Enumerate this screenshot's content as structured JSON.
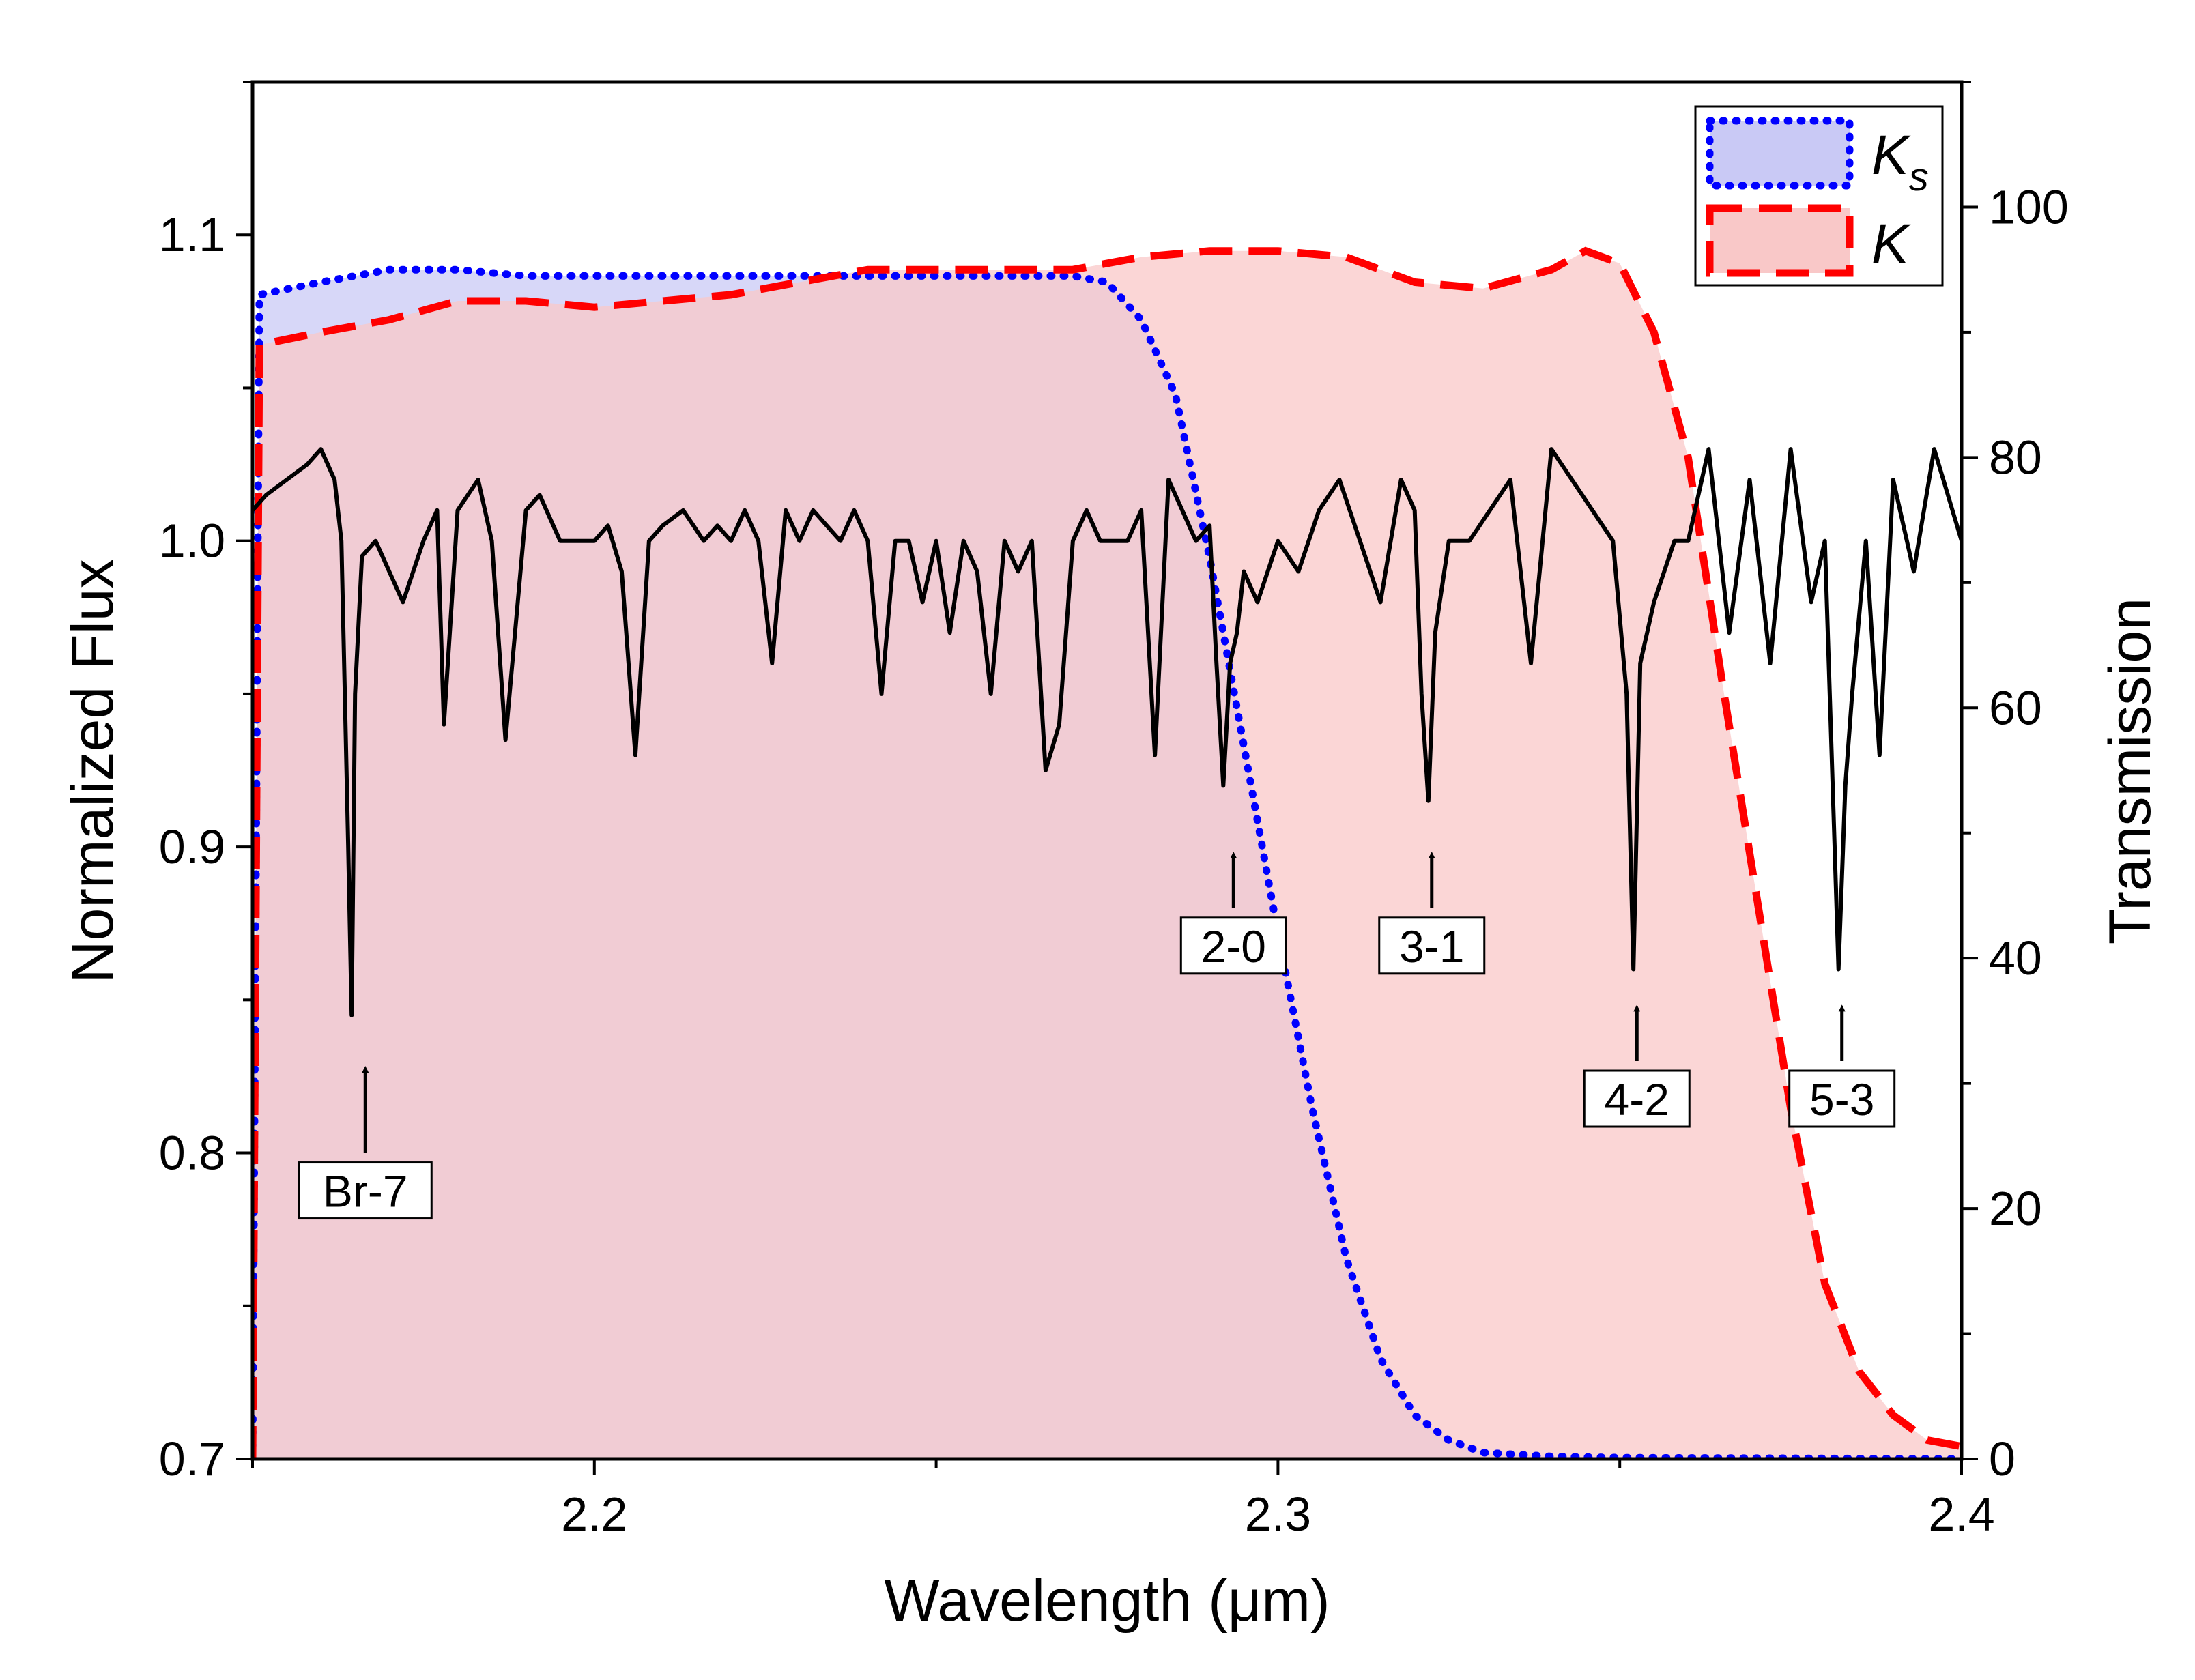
{
  "chart_data": {
    "type": "line",
    "xlabel": "Wavelength (μm)",
    "ylabel_left": "Normalized Flux",
    "ylabel_right": "Transmission",
    "xlim": [
      2.15,
      2.4
    ],
    "ylim_left": [
      0.7,
      1.15
    ],
    "ylim_right": [
      0,
      110
    ],
    "x_ticks": [
      2.2,
      2.3,
      2.4
    ],
    "x_tick_labels": [
      "2.2",
      "2.3",
      "2.4"
    ],
    "y_left_ticks": [
      0.7,
      0.8,
      0.9,
      1.0,
      1.1
    ],
    "y_left_tick_labels": [
      "0.7",
      "0.8",
      "0.9",
      "1.0",
      "1.1"
    ],
    "y_right_ticks": [
      0,
      20,
      40,
      60,
      80,
      100
    ],
    "y_right_tick_labels": [
      "0",
      "20",
      "40",
      "60",
      "80",
      "100"
    ],
    "grid": false,
    "legend_position": "top-right",
    "legend": [
      {
        "label": "K",
        "subscript": "s",
        "style": "dotted",
        "color": "#0000ff",
        "fill": "#c9c9f5"
      },
      {
        "label": "K",
        "subscript": "",
        "style": "dashed",
        "color": "#ff0000",
        "fill": "#f9c8c8"
      }
    ],
    "filters": [
      {
        "name": "Ks",
        "axis": "right",
        "color": "#0000ff",
        "fill": "#c9c9f5",
        "style": "dotted",
        "x": [
          2.15,
          2.151,
          2.16,
          2.17,
          2.18,
          2.19,
          2.2,
          2.21,
          2.22,
          2.23,
          2.24,
          2.25,
          2.26,
          2.27,
          2.275,
          2.28,
          2.285,
          2.29,
          2.295,
          2.3,
          2.305,
          2.31,
          2.315,
          2.32,
          2.325,
          2.33,
          2.34,
          2.35,
          2.4
        ],
        "y": [
          0,
          93,
          94,
          95,
          95,
          94.5,
          94.5,
          94.5,
          94.5,
          94.5,
          94.5,
          94.5,
          94.5,
          94.5,
          94,
          91,
          85,
          72,
          57,
          42,
          28,
          16,
          8,
          3.5,
          1.5,
          0.5,
          0.2,
          0.1,
          0
        ]
      },
      {
        "name": "K",
        "axis": "right",
        "color": "#ff0000",
        "fill": "#f9c8c8",
        "style": "dashed",
        "x": [
          2.15,
          2.151,
          2.16,
          2.17,
          2.18,
          2.19,
          2.2,
          2.21,
          2.22,
          2.23,
          2.24,
          2.25,
          2.26,
          2.27,
          2.28,
          2.29,
          2.3,
          2.31,
          2.32,
          2.33,
          2.34,
          2.345,
          2.35,
          2.355,
          2.36,
          2.365,
          2.37,
          2.375,
          2.38,
          2.385,
          2.39,
          2.395,
          2.4
        ],
        "y": [
          0,
          89,
          90,
          91,
          92.5,
          92.5,
          92,
          92.5,
          93,
          94,
          95,
          95,
          95,
          95,
          96,
          96.5,
          96.5,
          96,
          94,
          93.5,
          95,
          96.5,
          95.5,
          90,
          80,
          62,
          45,
          28,
          14,
          7,
          3.5,
          1.5,
          1
        ]
      }
    ],
    "series": [
      {
        "name": "",
        "axis": "left",
        "color": "#000000",
        "style": "solid",
        "x": [
          2.15,
          2.152,
          2.155,
          2.158,
          2.16,
          2.162,
          2.163,
          2.164,
          2.1645,
          2.165,
          2.166,
          2.168,
          2.17,
          2.172,
          2.175,
          2.177,
          2.178,
          2.18,
          2.183,
          2.185,
          2.187,
          2.19,
          2.192,
          2.195,
          2.2,
          2.202,
          2.204,
          2.206,
          2.208,
          2.21,
          2.213,
          2.216,
          2.218,
          2.22,
          2.222,
          2.224,
          2.226,
          2.228,
          2.23,
          2.232,
          2.234,
          2.236,
          2.238,
          2.24,
          2.242,
          2.244,
          2.246,
          2.248,
          2.25,
          2.252,
          2.254,
          2.256,
          2.258,
          2.26,
          2.262,
          2.264,
          2.266,
          2.268,
          2.27,
          2.272,
          2.274,
          2.276,
          2.278,
          2.28,
          2.282,
          2.284,
          2.286,
          2.288,
          2.29,
          2.291,
          2.292,
          2.293,
          2.294,
          2.295,
          2.297,
          2.3,
          2.303,
          2.306,
          2.309,
          2.312,
          2.315,
          2.318,
          2.32,
          2.321,
          2.322,
          2.323,
          2.325,
          2.328,
          2.331,
          2.334,
          2.337,
          2.34,
          2.343,
          2.346,
          2.349,
          2.351,
          2.352,
          2.353,
          2.355,
          2.358,
          2.36,
          2.363,
          2.366,
          2.369,
          2.372,
          2.375,
          2.378,
          2.38,
          2.381,
          2.382,
          2.383,
          2.384,
          2.386,
          2.388,
          2.39,
          2.393,
          2.396,
          2.4
        ],
        "y": [
          1.01,
          1.015,
          1.02,
          1.025,
          1.03,
          1.02,
          1.0,
          0.9,
          0.845,
          0.95,
          0.995,
          1.0,
          0.99,
          0.98,
          1.0,
          1.01,
          0.94,
          1.01,
          1.02,
          1.0,
          0.935,
          1.01,
          1.015,
          1.0,
          1.0,
          1.005,
          0.99,
          0.93,
          1.0,
          1.005,
          1.01,
          1.0,
          1.005,
          1.0,
          1.01,
          1.0,
          0.96,
          1.01,
          1.0,
          1.01,
          1.005,
          1.0,
          1.01,
          1.0,
          0.95,
          1.0,
          1.0,
          0.98,
          1.0,
          0.97,
          1.0,
          0.99,
          0.95,
          1.0,
          0.99,
          1.0,
          0.925,
          0.94,
          1.0,
          1.01,
          1.0,
          1.0,
          1.0,
          1.01,
          0.93,
          1.02,
          1.01,
          1.0,
          1.005,
          0.96,
          0.92,
          0.96,
          0.97,
          0.99,
          0.98,
          1.0,
          0.99,
          1.01,
          1.02,
          1.0,
          0.98,
          1.02,
          1.01,
          0.95,
          0.915,
          0.97,
          1.0,
          1.0,
          1.01,
          1.02,
          0.96,
          1.03,
          1.02,
          1.01,
          1.0,
          0.95,
          0.86,
          0.96,
          0.98,
          1.0,
          1.0,
          1.03,
          0.97,
          1.02,
          0.96,
          1.03,
          0.98,
          1.0,
          0.93,
          0.86,
          0.92,
          0.95,
          1.0,
          0.93,
          1.02,
          0.99,
          1.03,
          1.0
        ]
      }
    ],
    "annotations": [
      {
        "text": "Br-7",
        "x": 2.1665,
        "tip_y": 0.83,
        "tail_y": 0.8
      },
      {
        "text": "2-0",
        "x": 2.2935,
        "tip_y": 0.9,
        "tail_y": 0.88
      },
      {
        "text": "3-1",
        "x": 2.3225,
        "tip_y": 0.9,
        "tail_y": 0.88
      },
      {
        "text": "4-2",
        "x": 2.3525,
        "tip_y": 0.85,
        "tail_y": 0.83
      },
      {
        "text": "5-3",
        "x": 2.3825,
        "tip_y": 0.85,
        "tail_y": 0.83
      }
    ]
  }
}
